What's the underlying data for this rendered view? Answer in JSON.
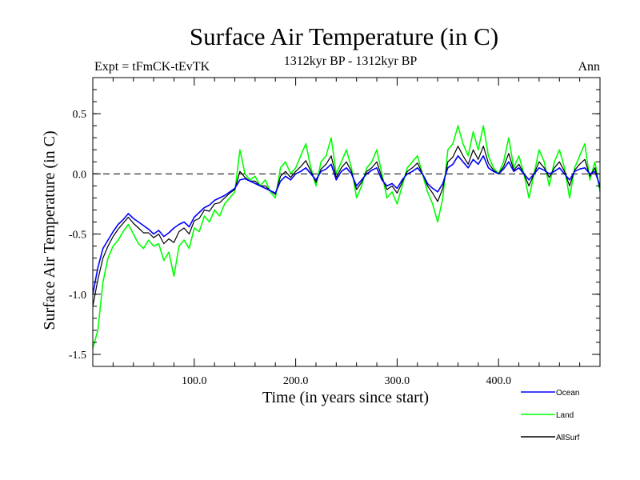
{
  "chart_data": {
    "type": "line",
    "title": "Surface Air Temperature (in C)",
    "subtitle_left": "Expt = tFmCK-tEvTK",
    "subtitle_center": "1312kyr BP - 1312kyr BP",
    "subtitle_right": "Ann",
    "xlabel": "Time (in years since start)",
    "ylabel": "Surface Air Temperature (in C)",
    "xlim": [
      0,
      500
    ],
    "ylim": [
      -1.6,
      0.8
    ],
    "xticks": [
      100,
      200,
      300,
      400
    ],
    "xtick_labels": [
      "100.0",
      "200.0",
      "300.0",
      "400.0"
    ],
    "yticks": [
      -1.5,
      -1.0,
      -0.5,
      0.0,
      0.5
    ],
    "ytick_labels": [
      "-1.5",
      "-1.0",
      "-0.5",
      "0.0",
      "0.5"
    ],
    "reference_line": 0.0,
    "series": [
      {
        "name": "Ocean",
        "color": "#0000ff",
        "x": [
          0,
          5,
          10,
          15,
          20,
          25,
          30,
          35,
          40,
          45,
          50,
          55,
          60,
          65,
          70,
          75,
          80,
          85,
          90,
          95,
          100,
          105,
          110,
          115,
          120,
          125,
          130,
          135,
          140,
          145,
          150,
          155,
          160,
          165,
          170,
          175,
          180,
          185,
          190,
          195,
          200,
          205,
          210,
          215,
          220,
          225,
          230,
          235,
          240,
          245,
          250,
          255,
          260,
          265,
          270,
          275,
          280,
          285,
          290,
          295,
          300,
          305,
          310,
          315,
          320,
          325,
          330,
          335,
          340,
          345,
          350,
          355,
          360,
          365,
          370,
          375,
          380,
          385,
          390,
          395,
          400,
          405,
          410,
          415,
          420,
          425,
          430,
          435,
          440,
          445,
          450,
          455,
          460,
          465,
          470,
          475,
          480,
          485,
          490,
          495,
          500
        ],
        "values": [
          -1.0,
          -0.78,
          -0.62,
          -0.55,
          -0.48,
          -0.42,
          -0.38,
          -0.33,
          -0.37,
          -0.4,
          -0.43,
          -0.46,
          -0.5,
          -0.47,
          -0.52,
          -0.49,
          -0.45,
          -0.42,
          -0.4,
          -0.44,
          -0.36,
          -0.32,
          -0.28,
          -0.26,
          -0.22,
          -0.2,
          -0.18,
          -0.15,
          -0.12,
          -0.05,
          -0.04,
          -0.06,
          -0.08,
          -0.1,
          -0.12,
          -0.14,
          -0.16,
          -0.06,
          -0.02,
          -0.05,
          0.0,
          0.02,
          0.05,
          0.0,
          -0.05,
          0.02,
          0.04,
          0.08,
          -0.05,
          0.02,
          0.05,
          0.0,
          -0.1,
          -0.05,
          0.0,
          0.03,
          0.05,
          -0.05,
          -0.1,
          -0.08,
          -0.12,
          -0.05,
          0.0,
          0.02,
          0.05,
          0.0,
          -0.08,
          -0.12,
          -0.15,
          -0.08,
          0.05,
          0.08,
          0.15,
          0.1,
          0.05,
          0.12,
          0.08,
          0.15,
          0.05,
          0.02,
          0.0,
          0.04,
          0.1,
          0.02,
          0.05,
          0.0,
          -0.05,
          0.0,
          0.05,
          0.03,
          0.0,
          0.02,
          0.05,
          0.0,
          -0.05,
          0.02,
          0.04,
          0.05,
          0.0,
          0.02,
          -0.1
        ]
      },
      {
        "name": "Land",
        "color": "#00ff00",
        "x": [
          0,
          5,
          10,
          15,
          20,
          25,
          30,
          35,
          40,
          45,
          50,
          55,
          60,
          65,
          70,
          75,
          80,
          85,
          90,
          95,
          100,
          105,
          110,
          115,
          120,
          125,
          130,
          135,
          140,
          145,
          150,
          155,
          160,
          165,
          170,
          175,
          180,
          185,
          190,
          195,
          200,
          205,
          210,
          215,
          220,
          225,
          230,
          235,
          240,
          245,
          250,
          255,
          260,
          265,
          270,
          275,
          280,
          285,
          290,
          295,
          300,
          305,
          310,
          315,
          320,
          325,
          330,
          335,
          340,
          345,
          350,
          355,
          360,
          365,
          370,
          375,
          380,
          385,
          390,
          395,
          400,
          405,
          410,
          415,
          420,
          425,
          430,
          435,
          440,
          445,
          450,
          455,
          460,
          465,
          470,
          475,
          480,
          485,
          490,
          495,
          500
        ],
        "values": [
          -1.45,
          -1.3,
          -0.9,
          -0.7,
          -0.6,
          -0.55,
          -0.48,
          -0.42,
          -0.5,
          -0.58,
          -0.62,
          -0.55,
          -0.6,
          -0.58,
          -0.72,
          -0.65,
          -0.85,
          -0.6,
          -0.55,
          -0.62,
          -0.45,
          -0.48,
          -0.35,
          -0.4,
          -0.3,
          -0.35,
          -0.25,
          -0.2,
          -0.15,
          0.2,
          0.0,
          -0.05,
          -0.02,
          -0.1,
          -0.05,
          -0.15,
          -0.2,
          0.05,
          0.1,
          0.0,
          0.05,
          0.15,
          0.25,
          0.05,
          -0.1,
          0.1,
          0.15,
          0.3,
          0.0,
          0.1,
          0.2,
          0.05,
          -0.2,
          -0.1,
          0.05,
          0.1,
          0.2,
          0.0,
          -0.2,
          -0.15,
          -0.25,
          -0.1,
          0.05,
          0.1,
          0.15,
          0.0,
          -0.15,
          -0.25,
          -0.4,
          -0.2,
          0.2,
          0.25,
          0.4,
          0.25,
          0.15,
          0.35,
          0.2,
          0.4,
          0.15,
          0.05,
          0.0,
          0.1,
          0.3,
          0.05,
          0.15,
          0.0,
          -0.2,
          0.0,
          0.2,
          0.1,
          -0.1,
          0.1,
          0.2,
          0.05,
          -0.2,
          0.05,
          0.15,
          0.25,
          -0.05,
          0.1,
          -0.15
        ]
      },
      {
        "name": "AllSurf",
        "color": "#000000",
        "x": [
          0,
          5,
          10,
          15,
          20,
          25,
          30,
          35,
          40,
          45,
          50,
          55,
          60,
          65,
          70,
          75,
          80,
          85,
          90,
          95,
          100,
          105,
          110,
          115,
          120,
          125,
          130,
          135,
          140,
          145,
          150,
          155,
          160,
          165,
          170,
          175,
          180,
          185,
          190,
          195,
          200,
          205,
          210,
          215,
          220,
          225,
          230,
          235,
          240,
          245,
          250,
          255,
          260,
          265,
          270,
          275,
          280,
          285,
          290,
          295,
          300,
          305,
          310,
          315,
          320,
          325,
          330,
          335,
          340,
          345,
          350,
          355,
          360,
          365,
          370,
          375,
          380,
          385,
          390,
          395,
          400,
          405,
          410,
          415,
          420,
          425,
          430,
          435,
          440,
          445,
          450,
          455,
          460,
          465,
          470,
          475,
          480,
          485,
          490,
          495,
          500
        ],
        "values": [
          -1.1,
          -0.88,
          -0.7,
          -0.6,
          -0.52,
          -0.46,
          -0.41,
          -0.36,
          -0.41,
          -0.45,
          -0.49,
          -0.49,
          -0.53,
          -0.5,
          -0.58,
          -0.54,
          -0.57,
          -0.48,
          -0.45,
          -0.5,
          -0.39,
          -0.37,
          -0.3,
          -0.31,
          -0.25,
          -0.24,
          -0.2,
          -0.16,
          -0.13,
          0.02,
          -0.03,
          -0.06,
          -0.06,
          -0.1,
          -0.1,
          -0.14,
          -0.17,
          -0.02,
          0.02,
          -0.03,
          0.02,
          0.06,
          0.11,
          0.02,
          -0.07,
          0.04,
          0.08,
          0.15,
          -0.03,
          0.05,
          0.1,
          0.02,
          -0.13,
          -0.07,
          0.02,
          0.05,
          0.1,
          -0.03,
          -0.13,
          -0.1,
          -0.16,
          -0.07,
          0.02,
          0.05,
          0.09,
          0.0,
          -0.1,
          -0.16,
          -0.23,
          -0.12,
          0.1,
          0.14,
          0.23,
          0.15,
          0.08,
          0.2,
          0.12,
          0.23,
          0.09,
          0.03,
          0.0,
          0.06,
          0.17,
          0.03,
          0.08,
          0.0,
          -0.1,
          0.0,
          0.1,
          0.05,
          -0.03,
          0.05,
          0.1,
          0.02,
          -0.1,
          0.03,
          0.08,
          0.12,
          -0.02,
          0.05,
          -0.12
        ]
      }
    ],
    "legend": [
      {
        "label": "Ocean",
        "color": "#0000ff"
      },
      {
        "label": "Land",
        "color": "#00ff00"
      },
      {
        "label": "AllSurf",
        "color": "#000000"
      }
    ]
  }
}
